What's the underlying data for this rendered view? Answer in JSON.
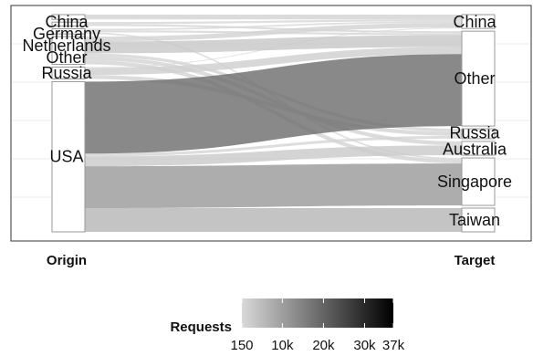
{
  "chart_data": {
    "type": "alluvial",
    "axes": [
      "Origin",
      "Target"
    ],
    "origin_nodes": [
      {
        "name": "China",
        "value": 1200
      },
      {
        "name": "Germany",
        "value": 1000
      },
      {
        "name": "Netherlands",
        "value": 1300
      },
      {
        "name": "Other",
        "value": 7000
      },
      {
        "name": "Russia",
        "value": 3000
      },
      {
        "name": "USA",
        "value": 38000
      }
    ],
    "target_nodes": [
      {
        "name": "China",
        "value": 3500
      },
      {
        "name": "Other",
        "value": 24000
      },
      {
        "name": "Russia",
        "value": 2500
      },
      {
        "name": "Australia",
        "value": 3500
      },
      {
        "name": "Singapore",
        "value": 12000
      },
      {
        "name": "Taiwan",
        "value": 6000
      }
    ],
    "flows": [
      {
        "origin": "China",
        "target": "China",
        "value": 1200
      },
      {
        "origin": "Germany",
        "target": "China",
        "value": 500
      },
      {
        "origin": "Germany",
        "target": "Other",
        "value": 500
      },
      {
        "origin": "Netherlands",
        "target": "China",
        "value": 400
      },
      {
        "origin": "Netherlands",
        "target": "Other",
        "value": 500
      },
      {
        "origin": "Netherlands",
        "target": "Singapore",
        "value": 400
      },
      {
        "origin": "Other",
        "target": "China",
        "value": 1200
      },
      {
        "origin": "Other",
        "target": "Other",
        "value": 3000
      },
      {
        "origin": "Other",
        "target": "Russia",
        "value": 800
      },
      {
        "origin": "Other",
        "target": "Australia",
        "value": 1000
      },
      {
        "origin": "Other",
        "target": "Singapore",
        "value": 1000
      },
      {
        "origin": "Russia",
        "target": "China",
        "value": 200
      },
      {
        "origin": "Russia",
        "target": "Other",
        "value": 1800
      },
      {
        "origin": "Russia",
        "target": "Russia",
        "value": 1000
      },
      {
        "origin": "USA",
        "target": "Other",
        "value": 18200
      },
      {
        "origin": "USA",
        "target": "Russia",
        "value": 700
      },
      {
        "origin": "USA",
        "target": "Australia",
        "value": 2500
      },
      {
        "origin": "USA",
        "target": "Singapore",
        "value": 10600
      },
      {
        "origin": "USA",
        "target": "Taiwan",
        "value": 6000
      }
    ],
    "legend": {
      "title": "Requests",
      "position": "bottom",
      "min": 150,
      "max": 37000,
      "ticks": [
        {
          "value": 150,
          "label": "150"
        },
        {
          "value": 10000,
          "label": "10k"
        },
        {
          "value": 20000,
          "label": "20k"
        },
        {
          "value": 30000,
          "label": "30k"
        },
        {
          "value": 37000,
          "label": "37k"
        }
      ],
      "color_low": "#d9d9d9",
      "color_high": "#000000"
    },
    "grid": true,
    "panel_border": true
  }
}
